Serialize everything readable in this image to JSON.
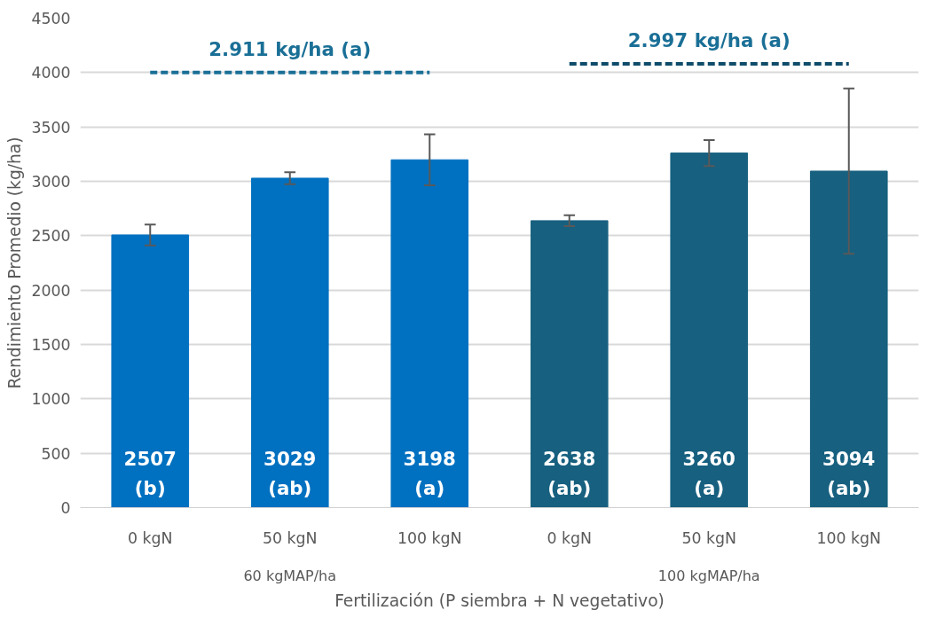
{
  "chart_data": {
    "type": "bar",
    "xlabel": "Fertilización (P siembra + N vegetativo)",
    "ylabel": "Rendimiento Promedio (kg/ha)",
    "categories": [
      "0 kgN",
      "50 kgN",
      "100 kgN",
      "0 kgN",
      "50 kgN",
      "100 kgN"
    ],
    "series": [
      {
        "colors": [
          "#0070c0",
          "#0070c0",
          "#0070c0",
          "#17607f",
          "#17607f",
          "#17607f"
        ],
        "values": [
          2507,
          3029,
          3198,
          2638,
          3260,
          3094
        ],
        "errors": [
          95,
          55,
          235,
          50,
          120,
          760
        ],
        "value_labels": [
          "2507\n(b)",
          "3029\n(ab)",
          "3198\n(a)",
          "2638\n(ab)",
          "3260\n(a)",
          "3094\n(ab)"
        ]
      },
      {
        "type": "line",
        "color": "#1a6f96",
        "line_style": "dashed",
        "values": [
          4000,
          4000,
          4000,
          null,
          null,
          null
        ]
      },
      {
        "type": "line",
        "color": "#0f4c6a",
        "line_style": "dashed",
        "values": [
          null,
          null,
          null,
          4080,
          4080,
          4080
        ]
      }
    ],
    "annotations": [
      {
        "text": "2.911 kg/ha (a)",
        "y": 4000
      },
      {
        "text": "2.997 kg/ha (a)",
        "y": 4080
      },
      "60 kgMAP/ha",
      "100 kgMAP/ha"
    ],
    "ylim": [
      0,
      4500
    ],
    "yticks": [
      0,
      500,
      1000,
      1500,
      2000,
      2500,
      3000,
      3500,
      4000,
      4500
    ],
    "grid": "y"
  }
}
